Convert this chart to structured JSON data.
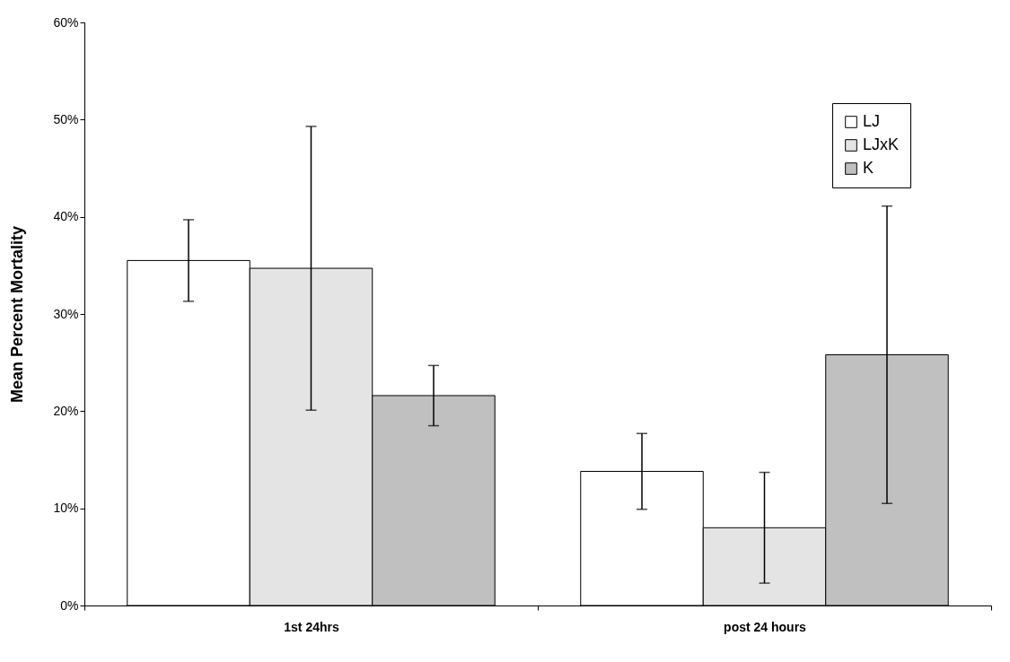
{
  "chart_data": {
    "type": "bar",
    "ylabel": "Mean Percent Mortality",
    "categories": [
      "1st 24hrs",
      "post 24 hours"
    ],
    "series": [
      {
        "name": "LJ",
        "color": "#ffffff",
        "values": [
          35.5,
          13.8
        ],
        "errors": [
          4.2,
          3.9
        ]
      },
      {
        "name": "LJxK",
        "color": "#e4e4e4",
        "values": [
          34.7,
          8.0
        ],
        "errors": [
          14.6,
          5.7
        ]
      },
      {
        "name": "K",
        "color": "#c0c0c0",
        "values": [
          21.6,
          25.8
        ],
        "errors": [
          3.1,
          15.3
        ]
      }
    ],
    "ylim": [
      0,
      60
    ],
    "yticks": [
      {
        "value": 0,
        "label": "0%"
      },
      {
        "value": 10,
        "label": "10%"
      },
      {
        "value": 20,
        "label": "20%"
      },
      {
        "value": 30,
        "label": "30%"
      },
      {
        "value": 40,
        "label": "40%"
      },
      {
        "value": 50,
        "label": "50%"
      },
      {
        "value": 60,
        "label": "60%"
      }
    ],
    "grid": false,
    "legend": "top right"
  }
}
